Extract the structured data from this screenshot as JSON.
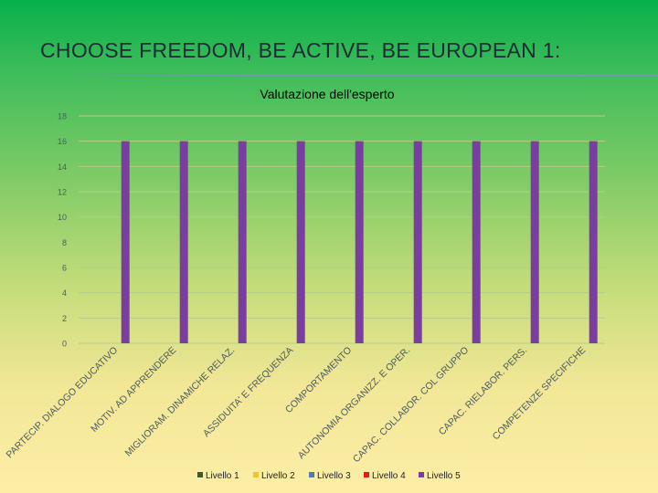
{
  "slide": {
    "title": "CHOOSE FREEDOM, BE ACTIVE, BE EUROPEAN 1:"
  },
  "colors": {
    "grid": "#b7cd88",
    "tick_text": "#4d5a63",
    "category_text": "#4d5a63",
    "title_text": "#4d5a63",
    "legend_text": "#222222"
  },
  "chart_data": {
    "type": "bar",
    "title": "Valutazione dell'esperto",
    "xlabel": "",
    "ylabel": "",
    "ylim": [
      0,
      18
    ],
    "yticks": [
      0,
      2,
      4,
      6,
      8,
      10,
      12,
      14,
      16,
      18
    ],
    "grid": true,
    "legend_position": "bottom",
    "categories": [
      "PARTECIP. DIALOGO EDUCATIVO",
      "MOTIV. AD APPRENDERE",
      "MIGLIORAM. DINAMICHE RELAZ.",
      "ASSIDUITA' E FREQUENZA",
      "COMPORTAMENTO",
      "AUTONOMIA ORGANIZZ. E OPER.",
      "CAPAC. COLLABOR. COL GRUPPO",
      "CAPAC. RIELABOR. PERS.",
      "COMPETENZE SPECIFICHE"
    ],
    "series": [
      {
        "name": "Livello 1",
        "color": "#3e5a26",
        "values": [
          0,
          0,
          0,
          0,
          0,
          0,
          0,
          0,
          0
        ]
      },
      {
        "name": "Livello 2",
        "color": "#f2c12e",
        "values": [
          0,
          0,
          0,
          0,
          0,
          0,
          0,
          0,
          0
        ]
      },
      {
        "name": "Livello 3",
        "color": "#4f7ea8",
        "values": [
          0,
          0,
          0,
          0,
          0,
          0,
          0,
          0,
          0
        ]
      },
      {
        "name": "Livello 4",
        "color": "#e31b1b",
        "values": [
          0,
          0,
          0,
          0,
          0,
          0,
          0,
          0,
          0
        ]
      },
      {
        "name": "Livello 5",
        "color": "#7a3ea3",
        "values": [
          16,
          16,
          16,
          16,
          16,
          16,
          16,
          16,
          16
        ]
      }
    ]
  }
}
